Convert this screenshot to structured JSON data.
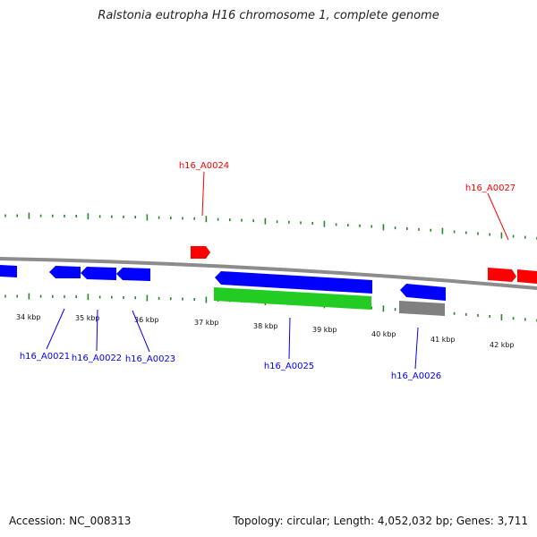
{
  "title": "Ralstonia eutropha H16 chromosome 1, complete genome",
  "footer": {
    "accession": "Accession: NC_008313",
    "summary": "Topology: circular; Length: 4,052,032 bp; Genes: 3,711"
  },
  "colors": {
    "forward_gene": "#ff0000",
    "reverse_gene": "#0000ff",
    "rna_feature": "#22cc22",
    "pseudo_feature": "#808080",
    "backbone": "#8c8c8c",
    "ticks": "#228b22"
  },
  "ticks": {
    "labels": [
      "34 kbp",
      "35 kbp",
      "36 kbp",
      "37 kbp",
      "38 kbp",
      "39 kbp",
      "40 kbp",
      "41 kbp",
      "42 kbp"
    ]
  },
  "genes": {
    "labels": [
      {
        "name": "h16_A0024",
        "strand": "forward"
      },
      {
        "name": "h16_A0027",
        "strand": "forward"
      },
      {
        "name": "h16_A0021",
        "strand": "reverse"
      },
      {
        "name": "h16_A0022",
        "strand": "reverse"
      },
      {
        "name": "h16_A0023",
        "strand": "reverse"
      },
      {
        "name": "h16_A0025",
        "strand": "reverse"
      },
      {
        "name": "h16_A0026",
        "strand": "reverse"
      }
    ]
  }
}
